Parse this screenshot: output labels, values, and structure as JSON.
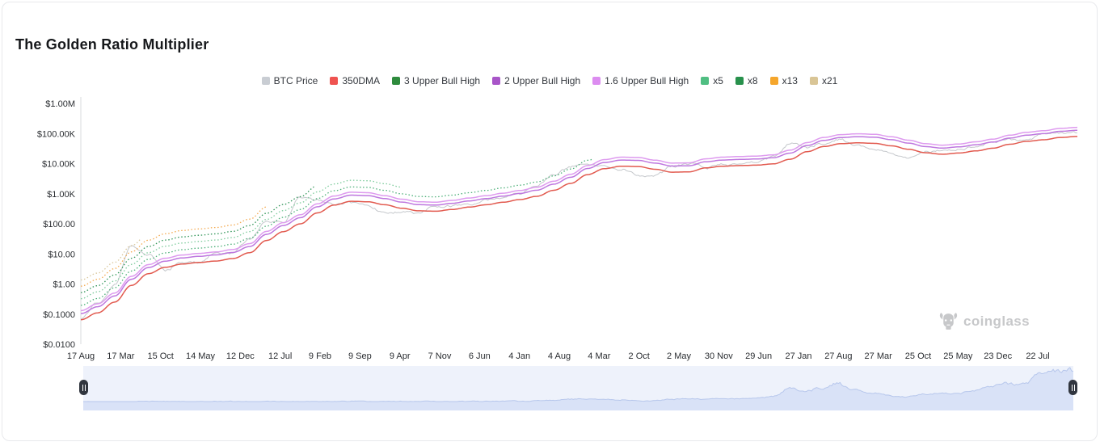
{
  "title": "The Golden Ratio Multiplier",
  "watermark": "coinglass",
  "legend": [
    {
      "label": "BTC Price",
      "color": "#C9CDD3"
    },
    {
      "label": "350DMA",
      "color": "#EF5350"
    },
    {
      "label": "3 Upper Bull High",
      "color": "#2E8B3D"
    },
    {
      "label": "2 Upper Bull High",
      "color": "#A855C8"
    },
    {
      "label": "1.6 Upper Bull High",
      "color": "#DC8CF0"
    },
    {
      "label": "x5",
      "color": "#50BE82"
    },
    {
      "label": "x8",
      "color": "#28914C"
    },
    {
      "label": "x13",
      "color": "#F5A62C"
    },
    {
      "label": "x21",
      "color": "#D9C596"
    }
  ],
  "y_axis": {
    "labels": [
      "$1.00M",
      "$100.00K",
      "$10.00K",
      "$1.00K",
      "$100.00",
      "$10.00",
      "$1.00",
      "$0.1000",
      "$0.0100"
    ],
    "log_values": [
      6,
      5,
      4,
      3,
      2,
      1,
      0,
      -1,
      -2
    ]
  },
  "x_axis": {
    "labels": [
      "17 Aug",
      "17 Mar",
      "15 Oct",
      "14 May",
      "12 Dec",
      "12 Jul",
      "9 Feb",
      "9 Sep",
      "9 Apr",
      "7 Nov",
      "6 Jun",
      "4 Jan",
      "4 Aug",
      "4 Mar",
      "2 Oct",
      "2 May",
      "30 Nov",
      "29 Jun",
      "27 Jan",
      "27 Aug",
      "27 Mar",
      "25 Oct",
      "25 May",
      "23 Dec",
      "22 Jul"
    ]
  },
  "chart_data": {
    "type": "line",
    "y_scale": "log",
    "ylim": [
      0.01,
      1000000
    ],
    "grid": false,
    "legend_position": "top-center",
    "x": [
      "2010-08",
      "2010-11",
      "2011-02",
      "2011-05",
      "2011-08",
      "2011-11",
      "2012-02",
      "2012-05",
      "2012-08",
      "2012-11",
      "2013-02",
      "2013-05",
      "2013-08",
      "2013-11",
      "2014-02",
      "2014-05",
      "2014-08",
      "2014-11",
      "2015-02",
      "2015-05",
      "2015-08",
      "2015-11",
      "2016-02",
      "2016-05",
      "2016-08",
      "2016-11",
      "2017-02",
      "2017-05",
      "2017-08",
      "2017-11",
      "2018-02",
      "2018-05",
      "2018-08",
      "2018-11",
      "2019-02",
      "2019-05",
      "2019-08",
      "2019-11",
      "2020-02",
      "2020-05",
      "2020-08",
      "2020-11",
      "2021-02",
      "2021-05",
      "2021-08",
      "2021-11",
      "2022-02",
      "2022-05",
      "2022-08",
      "2022-11",
      "2023-02",
      "2023-05",
      "2023-08",
      "2023-11",
      "2024-02",
      "2024-05",
      "2024-08",
      "2024-11",
      "2025-02",
      "2025-04"
    ],
    "series": [
      {
        "name": "BTC Price",
        "color": "#C5C8CC",
        "style": "noisy",
        "width": 1,
        "values": [
          0.07,
          0.25,
          0.95,
          18,
          9.5,
          2.8,
          5.0,
          5.1,
          11,
          11.5,
          30,
          120,
          105,
          780,
          620,
          450,
          500,
          370,
          240,
          240,
          230,
          380,
          400,
          450,
          580,
          730,
          1050,
          2000,
          4300,
          8000,
          9200,
          8500,
          6500,
          4000,
          3800,
          8000,
          10500,
          7500,
          9500,
          9400,
          11500,
          17000,
          47000,
          37000,
          47000,
          61000,
          40000,
          30000,
          21500,
          16500,
          23500,
          27000,
          27500,
          37000,
          51000,
          63000,
          59000,
          91000,
          96000,
          101000
        ]
      },
      {
        "name": "350DMA",
        "color": "#E25A4F",
        "style": "solid",
        "width": 1.5,
        "values": [
          0.065,
          0.11,
          0.25,
          0.9,
          2.2,
          3.6,
          4.6,
          5.2,
          5.8,
          7.0,
          11,
          28,
          55,
          100,
          230,
          420,
          560,
          540,
          430,
          330,
          270,
          262,
          300,
          360,
          430,
          520,
          640,
          820,
          1300,
          2200,
          4300,
          6800,
          8200,
          8000,
          6500,
          5200,
          5300,
          7200,
          8200,
          8600,
          8900,
          9800,
          14000,
          25000,
          37000,
          46000,
          49000,
          47000,
          39000,
          30000,
          23000,
          20500,
          22500,
          26500,
          32500,
          44000,
          55000,
          62000,
          74000,
          80000
        ]
      },
      {
        "name": "1.6 Upper Bull High",
        "color": "#BE77DF",
        "style": "solid",
        "width": 1.5,
        "multiplier": 1.6
      },
      {
        "name": "2 Upper Bull High",
        "color": "#DE9BEF",
        "style": "solid",
        "width": 1.5,
        "multiplier": 2
      },
      {
        "name": "3 Upper Bull High",
        "color": "#4CAF78",
        "style": "dotted",
        "width": 1.3,
        "multiplier": 3,
        "end_index": 30.3
      },
      {
        "name": "x5",
        "color": "#7CCB9B",
        "style": "dotted",
        "width": 1.3,
        "multiplier": 5,
        "end_index": 19
      },
      {
        "name": "x8",
        "color": "#2F9457",
        "style": "dotted",
        "width": 1.3,
        "multiplier": 8,
        "end_index": 13.8
      },
      {
        "name": "x13",
        "color": "#F3A94F",
        "style": "dotted",
        "width": 1.3,
        "multiplier": 13,
        "end_index": 11
      },
      {
        "name": "x21",
        "color": "#D9C89E",
        "style": "dotted",
        "width": 1.3,
        "multiplier": 21,
        "end_index": 3.5
      }
    ]
  },
  "navigator": {
    "max_value": 112000,
    "background": "#EEF2FB",
    "band_color": "#DCE3F8",
    "area_fill": "#D9E2F7",
    "line_color": "#B7C7EC",
    "handle_color": "#31363F"
  }
}
